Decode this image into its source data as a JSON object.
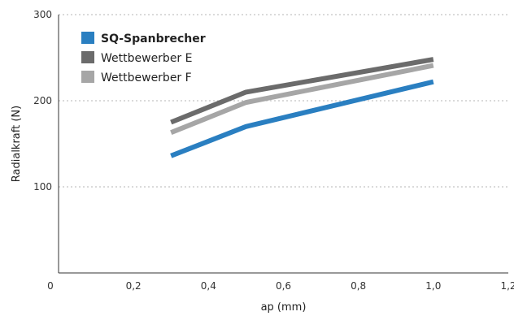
{
  "chart_data": {
    "type": "line",
    "title": "",
    "xlabel": "ap (mm)",
    "ylabel": "Radialkraft (N)",
    "xlim": [
      0,
      1.2
    ],
    "ylim": [
      0,
      300
    ],
    "x_ticks": [
      "0",
      "0,2",
      "0,4",
      "0,6",
      "0,8",
      "1,0",
      "1,2"
    ],
    "y_ticks": [
      "100",
      "200",
      "300"
    ],
    "grid": "horizontal dotted",
    "legend_position": "top-left",
    "series": [
      {
        "name": "SQ-Spanbrecher",
        "color": "#2a7fc1",
        "bold": true,
        "x": [
          0.3,
          0.5,
          1.0
        ],
        "y": [
          136,
          170,
          222
        ]
      },
      {
        "name": "Wettbewerber E",
        "color": "#6b6b6b",
        "bold": false,
        "x": [
          0.3,
          0.5,
          1.0
        ],
        "y": [
          175,
          210,
          248
        ]
      },
      {
        "name": "Wettbewerber F",
        "color": "#a6a6a6",
        "bold": false,
        "x": [
          0.3,
          0.5,
          1.0
        ],
        "y": [
          163,
          198,
          241
        ]
      }
    ]
  }
}
